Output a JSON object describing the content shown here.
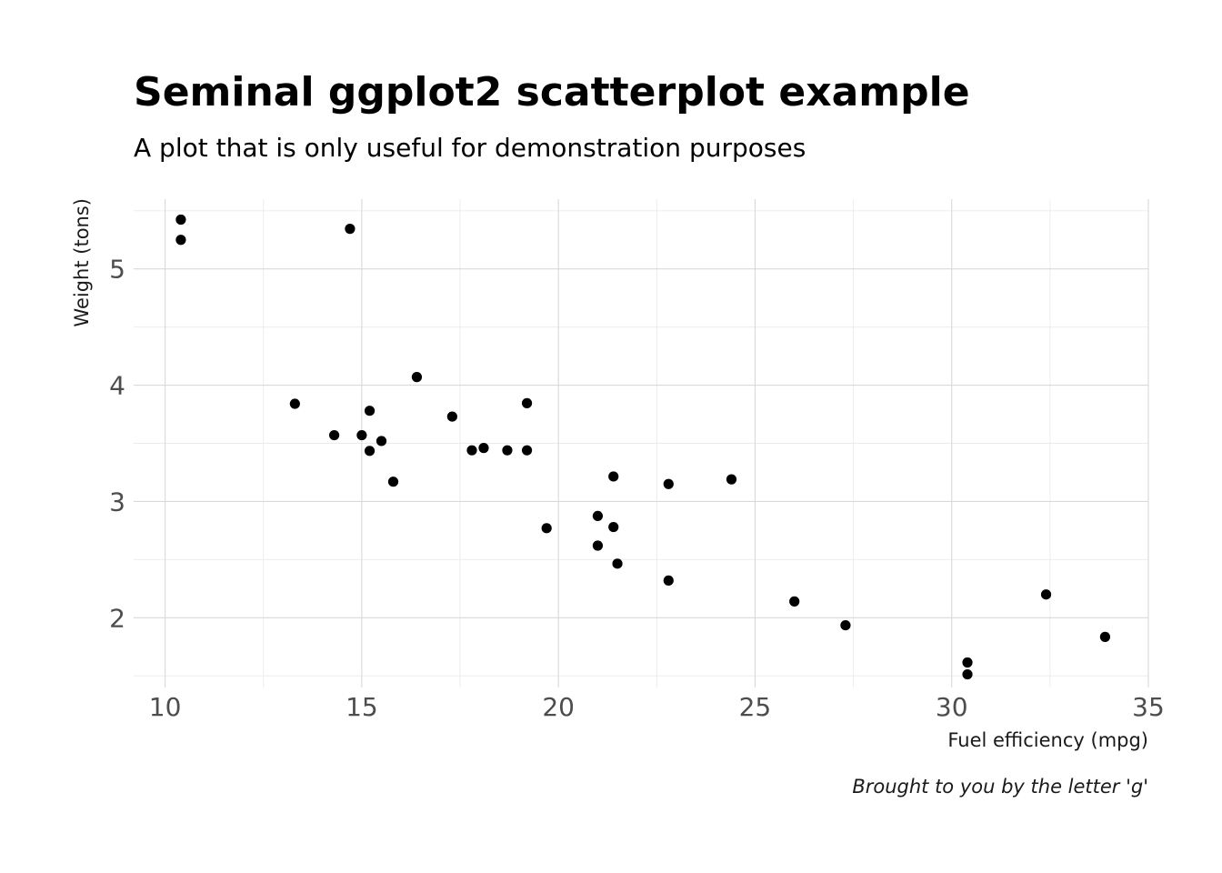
{
  "chart_data": {
    "type": "scatter",
    "title": "Seminal ggplot2 scatterplot example",
    "subtitle": "A plot that is only useful for demonstration purposes",
    "xlabel": "Fuel efficiency (mpg)",
    "ylabel": "Weight (tons)",
    "caption": "Brought to you by the letter 'g'",
    "xlim": [
      9.2,
      35.0
    ],
    "ylim": [
      1.4,
      5.6
    ],
    "x_ticks": [
      10,
      15,
      20,
      25,
      30,
      35
    ],
    "x_tick_labels": [
      "10",
      "15",
      "20",
      "25",
      "30",
      "35"
    ],
    "y_ticks": [
      2,
      3,
      4,
      5
    ],
    "y_tick_labels": [
      "2",
      "3",
      "4",
      "5"
    ],
    "x_minor": [
      12.5,
      17.5,
      22.5,
      27.5,
      32.5
    ],
    "y_minor": [
      1.5,
      2.5,
      3.5,
      4.5,
      5.5
    ],
    "grid": true,
    "point_color": "#000000",
    "points": [
      {
        "x": 21.0,
        "y": 2.62
      },
      {
        "x": 21.0,
        "y": 2.875
      },
      {
        "x": 22.8,
        "y": 2.32
      },
      {
        "x": 21.4,
        "y": 3.215
      },
      {
        "x": 18.7,
        "y": 3.44
      },
      {
        "x": 18.1,
        "y": 3.46
      },
      {
        "x": 14.3,
        "y": 3.57
      },
      {
        "x": 24.4,
        "y": 3.19
      },
      {
        "x": 22.8,
        "y": 3.15
      },
      {
        "x": 19.2,
        "y": 3.44
      },
      {
        "x": 17.8,
        "y": 3.44
      },
      {
        "x": 16.4,
        "y": 4.07
      },
      {
        "x": 17.3,
        "y": 3.73
      },
      {
        "x": 15.2,
        "y": 3.78
      },
      {
        "x": 10.4,
        "y": 5.25
      },
      {
        "x": 10.4,
        "y": 5.424
      },
      {
        "x": 14.7,
        "y": 5.345
      },
      {
        "x": 32.4,
        "y": 2.2
      },
      {
        "x": 30.4,
        "y": 1.615
      },
      {
        "x": 33.9,
        "y": 1.835
      },
      {
        "x": 21.5,
        "y": 2.465
      },
      {
        "x": 15.5,
        "y": 3.52
      },
      {
        "x": 15.2,
        "y": 3.435
      },
      {
        "x": 13.3,
        "y": 3.84
      },
      {
        "x": 19.2,
        "y": 3.845
      },
      {
        "x": 27.3,
        "y": 1.935
      },
      {
        "x": 26.0,
        "y": 2.14
      },
      {
        "x": 30.4,
        "y": 1.513
      },
      {
        "x": 15.8,
        "y": 3.17
      },
      {
        "x": 19.7,
        "y": 2.77
      },
      {
        "x": 15.0,
        "y": 3.57
      },
      {
        "x": 21.4,
        "y": 2.78
      }
    ]
  }
}
